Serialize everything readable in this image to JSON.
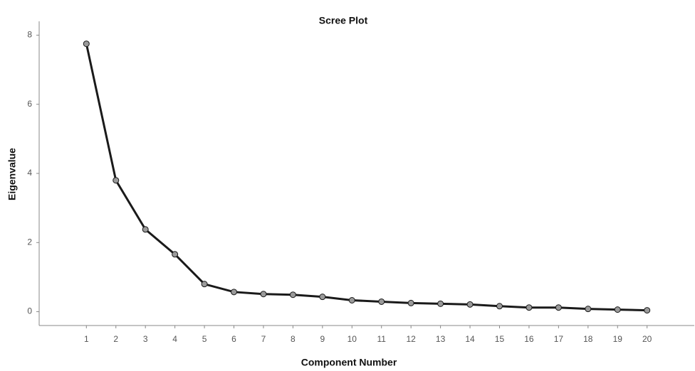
{
  "chart_data": {
    "type": "line",
    "title": "Scree Plot",
    "x_label": "Component Number",
    "y_label": "Eigenvalue",
    "x": [
      1,
      2,
      3,
      4,
      5,
      6,
      7,
      8,
      9,
      10,
      11,
      12,
      13,
      14,
      15,
      16,
      17,
      18,
      19,
      20
    ],
    "values": [
      7.75,
      3.8,
      2.38,
      1.66,
      0.8,
      0.57,
      0.51,
      0.49,
      0.43,
      0.33,
      0.29,
      0.25,
      0.23,
      0.21,
      0.16,
      0.12,
      0.12,
      0.08,
      0.06,
      0.04
    ],
    "color": "#1a1a1a",
    "marker_color": "#9a9a9a",
    "xlim": [
      -0.6,
      21.6
    ],
    "xticks": [
      1,
      2,
      3,
      4,
      5,
      6,
      7,
      8,
      9,
      10,
      11,
      12,
      13,
      14,
      15,
      16,
      17,
      18,
      19,
      20
    ],
    "ylim": [
      -0.4,
      8.4
    ],
    "yticks": [
      0,
      2,
      4,
      6,
      8
    ],
    "grid": false
  }
}
